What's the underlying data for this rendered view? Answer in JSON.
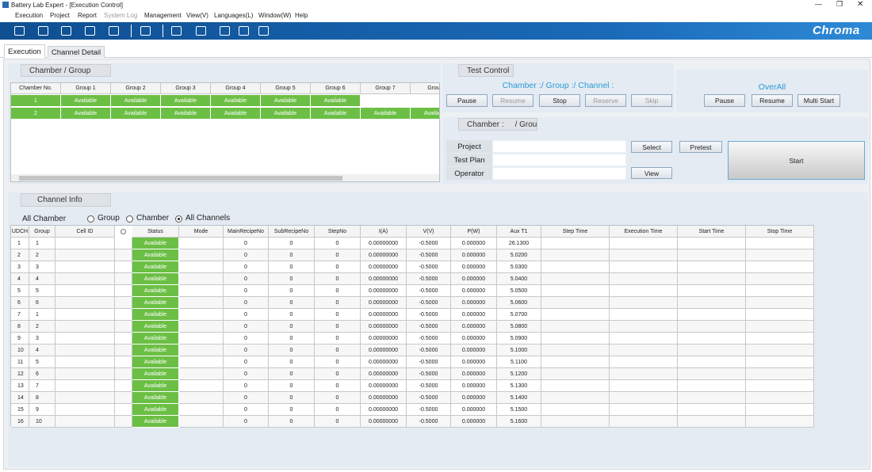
{
  "window": {
    "title": "Battery Lab Expert - [Execution Control]"
  },
  "menu": [
    "Execution",
    "Project",
    "Report",
    "System Log",
    "Management",
    "View(V)",
    "Languages(L)",
    "Window(W)",
    "Help"
  ],
  "brand": "Chroma",
  "tabs": [
    "Execution",
    "Channel Detail"
  ],
  "chamber_group": {
    "title": "Chamber / Group",
    "headers": [
      "Chamber No.",
      "Group 1",
      "Group 2",
      "Group 3",
      "Group 4",
      "Group 5",
      "Group 6",
      "Group 7",
      "Group"
    ],
    "rows": [
      [
        "1",
        "Available",
        "Available",
        "Available",
        "Available",
        "Available",
        "Available"
      ],
      [
        "2",
        "Available",
        "Available",
        "Available",
        "Available",
        "Available",
        "Available",
        "Available",
        "Available"
      ]
    ]
  },
  "test_control": {
    "title": "Test Control",
    "subtitle": "Chamber :/ Group :/ Channel :",
    "buttons": [
      "Pause",
      "Resume",
      "Stop",
      "Reserve",
      "Skip"
    ]
  },
  "overall": {
    "title": "OverAll",
    "buttons": [
      "Pause",
      "Resume",
      "Multi Start"
    ]
  },
  "chamber_info": {
    "title": "Chamber :     / Group :",
    "fields": [
      "Project",
      "Test Plan",
      "Operator"
    ],
    "select": "Select",
    "view": "View",
    "pretest": "Pretest",
    "start": "Start"
  },
  "channel_info": {
    "title": "Channel Info",
    "filter": "All Chamber",
    "radios": [
      "Group",
      "Chamber",
      "All Channels"
    ],
    "selected": 2,
    "headers": [
      "UDCH",
      "Group",
      "Cell ID",
      "Status",
      "Mode",
      "MainRecipeNo",
      "SubRecipeNo",
      "StepNo",
      "I(A)",
      "V(V)",
      "P(W)",
      "Aux T1",
      "Step Time",
      "Execution Time",
      "Start Time",
      "Stop Time"
    ],
    "rows": [
      [
        "1",
        "1",
        "Available",
        "0",
        "0",
        "0",
        "0.00000000",
        "-0.5000",
        "0.000000",
        "26.1300"
      ],
      [
        "2",
        "2",
        "Available",
        "0",
        "0",
        "0",
        "0.00000000",
        "-0.5000",
        "0.000000",
        "5.0200"
      ],
      [
        "3",
        "3",
        "Available",
        "0",
        "0",
        "0",
        "0.00000000",
        "-0.5000",
        "0.000000",
        "5.0300"
      ],
      [
        "4",
        "4",
        "Available",
        "0",
        "0",
        "0",
        "0.00000000",
        "-0.5000",
        "0.000000",
        "5.0400"
      ],
      [
        "5",
        "5",
        "Available",
        "0",
        "0",
        "0",
        "0.00000000",
        "-0.5000",
        "0.000000",
        "5.0500"
      ],
      [
        "6",
        "6",
        "Available",
        "0",
        "0",
        "0",
        "0.00000000",
        "-0.5000",
        "0.000000",
        "5.0600"
      ],
      [
        "7",
        "1",
        "Available",
        "0",
        "0",
        "0",
        "0.00000000",
        "-0.5000",
        "0.000000",
        "5.0700"
      ],
      [
        "8",
        "2",
        "Available",
        "0",
        "0",
        "0",
        "0.00000000",
        "-0.5000",
        "0.000000",
        "5.0800"
      ],
      [
        "9",
        "3",
        "Available",
        "0",
        "0",
        "0",
        "0.00000000",
        "-0.5000",
        "0.000000",
        "5.0900"
      ],
      [
        "10",
        "4",
        "Available",
        "0",
        "0",
        "0",
        "0.00000000",
        "-0.5000",
        "0.000000",
        "5.1000"
      ],
      [
        "11",
        "5",
        "Available",
        "0",
        "0",
        "0",
        "0.00000000",
        "-0.5000",
        "0.000000",
        "5.1100"
      ],
      [
        "12",
        "6",
        "Available",
        "0",
        "0",
        "0",
        "0.00000000",
        "-0.5000",
        "0.000000",
        "5.1200"
      ],
      [
        "13",
        "7",
        "Available",
        "0",
        "0",
        "0",
        "0.00000000",
        "-0.5000",
        "0.000000",
        "5.1300"
      ],
      [
        "14",
        "8",
        "Available",
        "0",
        "0",
        "0",
        "0.00000000",
        "-0.5000",
        "0.000000",
        "5.1400"
      ],
      [
        "15",
        "9",
        "Available",
        "0",
        "0",
        "0",
        "0.00000000",
        "-0.5000",
        "0.000000",
        "5.1500"
      ],
      [
        "16",
        "10",
        "Available",
        "0",
        "0",
        "0",
        "0.00000000",
        "-0.5000",
        "0.000000",
        "5.1600"
      ]
    ]
  }
}
